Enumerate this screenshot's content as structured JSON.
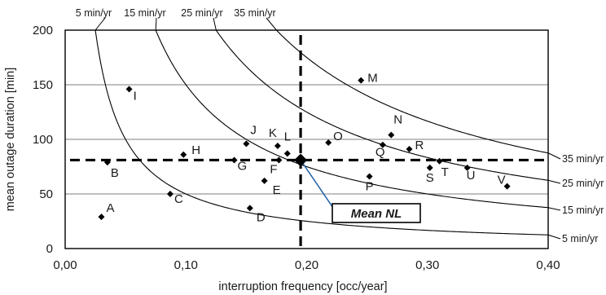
{
  "chart_data": {
    "type": "scatter",
    "xlabel": "interruption frequency [occ/year]",
    "ylabel": "mean outage duration [min]",
    "xlim": [
      0,
      0.4
    ],
    "ylim": [
      0,
      200
    ],
    "x_ticks": [
      0,
      0.1,
      0.2,
      0.3,
      0.4
    ],
    "x_tick_labels": [
      "0,00",
      "0,10",
      "0,20",
      "0,30",
      "0,40"
    ],
    "y_ticks": [
      0,
      50,
      100,
      150,
      200
    ],
    "y_tick_labels": [
      "0",
      "50",
      "100",
      "150",
      "200"
    ],
    "grid": "horizontal",
    "points": [
      {
        "label": "A",
        "x": 0.03,
        "y": 29
      },
      {
        "label": "B",
        "x": 0.035,
        "y": 79
      },
      {
        "label": "C",
        "x": 0.087,
        "y": 50
      },
      {
        "label": "D",
        "x": 0.153,
        "y": 37
      },
      {
        "label": "E",
        "x": 0.165,
        "y": 62
      },
      {
        "label": "F",
        "x": 0.177,
        "y": 81
      },
      {
        "label": "G",
        "x": 0.14,
        "y": 81
      },
      {
        "label": "H",
        "x": 0.098,
        "y": 86
      },
      {
        "label": "I",
        "x": 0.053,
        "y": 146
      },
      {
        "label": "J",
        "x": 0.15,
        "y": 96
      },
      {
        "label": "K",
        "x": 0.176,
        "y": 94
      },
      {
        "label": "L",
        "x": 0.184,
        "y": 87
      },
      {
        "label": "M",
        "x": 0.245,
        "y": 154
      },
      {
        "label": "N",
        "x": 0.27,
        "y": 104
      },
      {
        "label": "O",
        "x": 0.218,
        "y": 97
      },
      {
        "label": "P",
        "x": 0.252,
        "y": 66
      },
      {
        "label": "Q",
        "x": 0.263,
        "y": 95
      },
      {
        "label": "R",
        "x": 0.285,
        "y": 91
      },
      {
        "label": "S",
        "x": 0.302,
        "y": 74
      },
      {
        "label": "T",
        "x": 0.31,
        "y": 80
      },
      {
        "label": "U",
        "x": 0.333,
        "y": 74
      },
      {
        "label": "V",
        "x": 0.366,
        "y": 57
      }
    ],
    "mean": {
      "label": "Mean NL",
      "x": 0.195,
      "y": 81
    },
    "curves": [
      {
        "name": "5 min/yr",
        "product": 5,
        "top_label": "5 min/yr",
        "right_label": "5 min/yr"
      },
      {
        "name": "15 min/yr",
        "product": 15,
        "top_label": "15 min/yr",
        "right_label": "15 min/yr"
      },
      {
        "name": "25 min/yr",
        "product": 25,
        "top_label": "25 min/yr",
        "right_label": "25 min/yr"
      },
      {
        "name": "35 min/yr",
        "product": 35,
        "top_label": "35 min/yr",
        "right_label": "35 min/yr"
      }
    ]
  }
}
